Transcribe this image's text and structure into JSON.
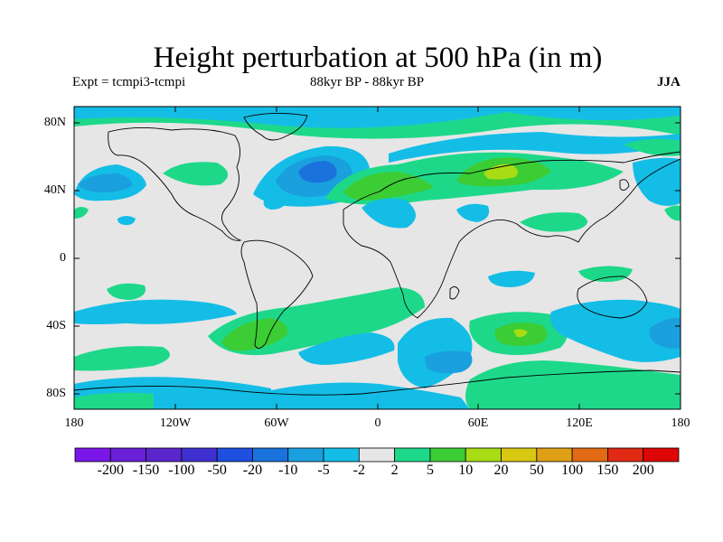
{
  "title": "Height perturbation at 500 hPa (in m)",
  "experiment": "Expt = tcmpi3-tcmpi",
  "period": "88kyr BP - 88kyr BP",
  "season": "JJA",
  "lat_labels": [
    "80N",
    "40N",
    "0",
    "40S",
    "80S"
  ],
  "lon_labels": [
    "180",
    "120W",
    "60W",
    "0",
    "60E",
    "120E",
    "180"
  ],
  "colorbar": {
    "labels": [
      "-200",
      "-150",
      "-100",
      "-50",
      "-20",
      "-10",
      "-5",
      "-2",
      "2",
      "5",
      "10",
      "20",
      "50",
      "100",
      "150",
      "200"
    ],
    "colors": [
      "#7a17e8",
      "#6a1fd8",
      "#5a26cc",
      "#3f2fd0",
      "#1f4fe0",
      "#1a72dc",
      "#1aa0de",
      "#14bde6",
      "#e6e6e6",
      "#1ed88a",
      "#3ccc34",
      "#a8dc14",
      "#d8c812",
      "#e0a016",
      "#e26a14",
      "#e02a14",
      "#de0606"
    ]
  },
  "map_colors": {
    "background": "#e6e6e6",
    "neg_light": "#14bde6",
    "neg_med": "#1aa0de",
    "neg_strong": "#1a72dc",
    "pos_light": "#1ed88a",
    "pos_med": "#3ccc34",
    "pos_strong": "#a8dc14",
    "pos_peak": "#d8c812"
  }
}
